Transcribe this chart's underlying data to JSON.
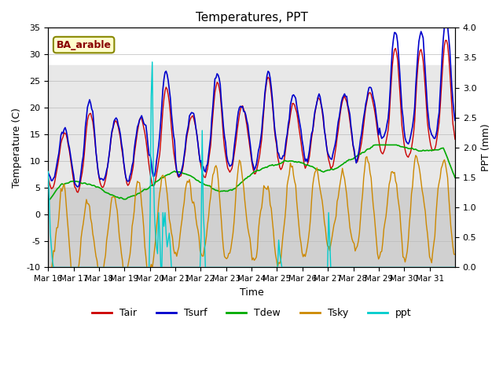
{
  "title": "Temperatures, PPT",
  "xlabel": "Time",
  "ylabel_left": "Temperature (C)",
  "ylabel_right": "PPT (mm)",
  "ylim_left": [
    -10,
    35
  ],
  "ylim_right": [
    0.0,
    4.0
  ],
  "yticks_left": [
    -10,
    -5,
    0,
    5,
    10,
    15,
    20,
    25,
    30,
    35
  ],
  "yticks_right": [
    0.0,
    0.5,
    1.0,
    1.5,
    2.0,
    2.5,
    3.0,
    3.5,
    4.0
  ],
  "xtick_labels": [
    "Mar 16",
    "Mar 17",
    "Mar 18",
    "Mar 19",
    "Mar 20",
    "Mar 21",
    "Mar 22",
    "Mar 23",
    "Mar 24",
    "Mar 25",
    "Mar 26",
    "Mar 27",
    "Mar 28",
    "Mar 29",
    "Mar 30",
    "Mar 31"
  ],
  "n_days": 16,
  "colors": {
    "Tair": "#cc0000",
    "Tsurf": "#0000cc",
    "Tdew": "#00aa00",
    "Tsky": "#cc8800",
    "ppt": "#00cccc"
  },
  "legend_label": "BA_arable",
  "bg_light_color": "#e8e8e8",
  "bg_dark_color": "#d0d0d0"
}
